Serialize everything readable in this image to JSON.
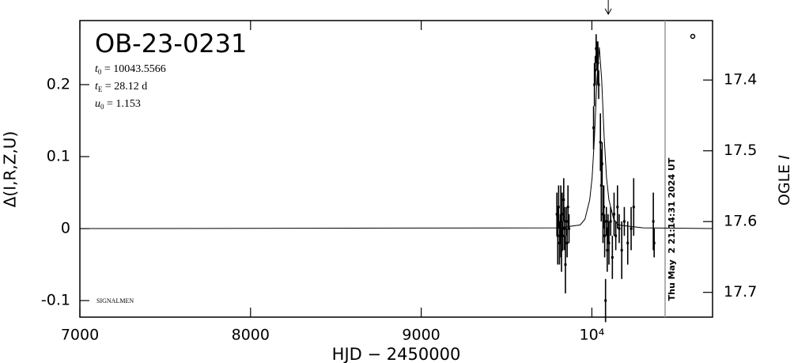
{
  "chart_data": {
    "type": "scatter",
    "title": "OB-23-0231",
    "params": [
      {
        "symbol": "t",
        "sub": "0",
        "text": " = 10043.5566"
      },
      {
        "symbol": "t",
        "sub": "E",
        "text": " = 28.12 d"
      },
      {
        "symbol": "u",
        "sub": "0",
        "text": " = 1.153"
      }
    ],
    "credit": "SIGNALMEN",
    "timestamp": "Thu May  2 21:14:31 2024 UT",
    "now_hjd": 10429,
    "arrow_hjd": 10096,
    "xlabel": "HJD − 2450000",
    "ylabel": "Δ(I,R,Z,U)",
    "y2label": "OGLE ",
    "y2label_italic": "I",
    "xlim": [
      7000,
      10707
    ],
    "xticks": [
      7000,
      8000,
      9000,
      {
        "value": 10000,
        "label": "10⁴"
      }
    ],
    "ylim": [
      -0.123,
      0.289
    ],
    "yticks": [
      -0.1,
      0,
      0.1,
      0.2
    ],
    "y2lim": [
      17.316,
      17.735
    ],
    "y2_inverted": true,
    "y2ticks": [
      17.4,
      17.5,
      17.6,
      17.7
    ],
    "color": "#000000",
    "x": [
      9795,
      9800,
      9805,
      9810,
      9815,
      9818,
      9822,
      9826,
      9830,
      9835,
      9840,
      9845,
      9850,
      9855,
      9860,
      9866,
      10010,
      10015,
      10020,
      10025,
      10030,
      10035,
      10040,
      10050,
      10055,
      10060,
      10065,
      10070,
      10075,
      10080,
      10085,
      10090,
      10095,
      10100,
      10110,
      10120,
      10130,
      10140,
      10150,
      10160,
      10175,
      10190,
      10210,
      10230,
      10245,
      10360,
      10365
    ],
    "values": [
      0.02,
      -0.01,
      0.03,
      -0.02,
      0.0,
      0.01,
      -0.03,
      0.02,
      -0.01,
      0.04,
      0.0,
      -0.05,
      0.01,
      -0.02,
      0.03,
      0.0,
      0.14,
      0.2,
      0.22,
      0.25,
      0.24,
      0.23,
      0.2,
      0.12,
      0.06,
      0.09,
      0.02,
      0.03,
      -0.01,
      -0.1,
      0.01,
      -0.03,
      0.0,
      -0.02,
      0.01,
      -0.04,
      0.02,
      -0.01,
      0.03,
      0.0,
      -0.03,
      0.01,
      -0.02,
      0.0,
      0.03,
      0.01,
      -0.02
    ],
    "errors": [
      0.03,
      0.04,
      0.03,
      0.03,
      0.02,
      0.05,
      0.03,
      0.03,
      0.02,
      0.03,
      0.03,
      0.04,
      0.02,
      0.02,
      0.03,
      0.02,
      0.03,
      0.03,
      0.02,
      0.02,
      0.02,
      0.03,
      0.02,
      0.04,
      0.05,
      0.03,
      0.04,
      0.03,
      0.03,
      0.03,
      0.02,
      0.03,
      0.02,
      0.03,
      0.02,
      0.03,
      0.03,
      0.02,
      0.03,
      0.02,
      0.04,
      0.02,
      0.03,
      0.03,
      0.04,
      0.04,
      0.02
    ],
    "model": {
      "x": [
        7000,
        9800,
        9931,
        9959.2,
        9987.3,
        10001.4,
        10015.4,
        10029.5,
        10043.6,
        10057.6,
        10071.7,
        10085.7,
        10099.8,
        10127.9,
        10156,
        10300,
        10707
      ],
      "values": [
        0,
        0.001,
        0.005,
        0.013,
        0.04,
        0.071,
        0.128,
        0.206,
        0.252,
        0.206,
        0.128,
        0.071,
        0.04,
        0.013,
        0.005,
        0.001,
        0
      ]
    }
  }
}
